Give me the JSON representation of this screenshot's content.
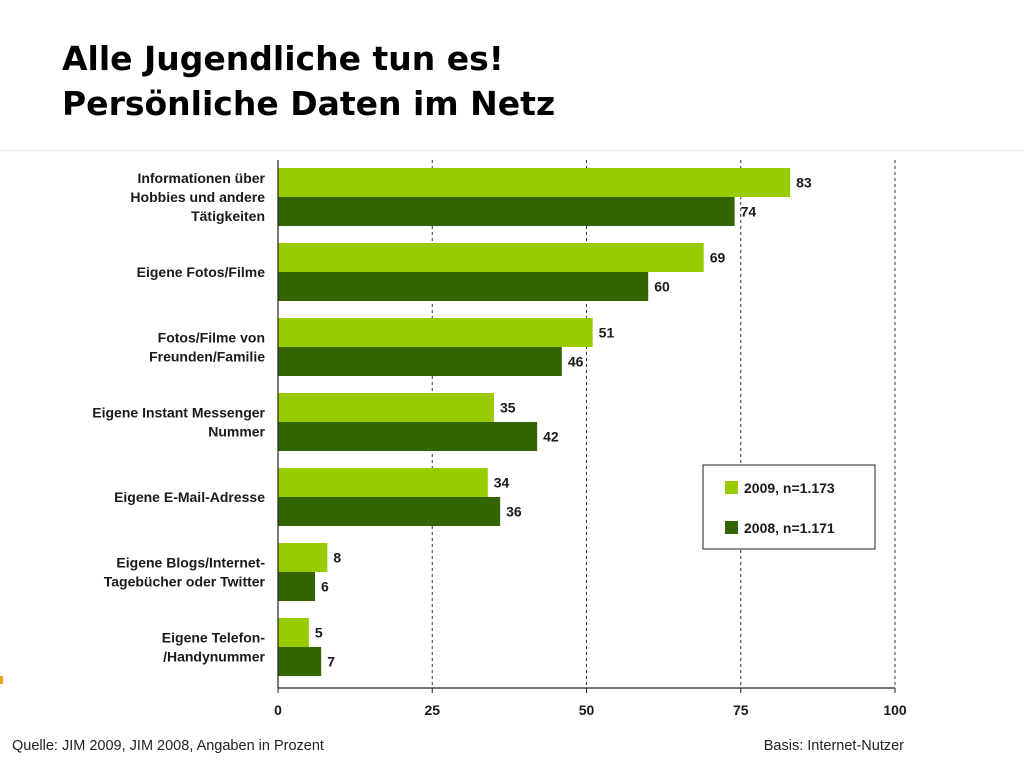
{
  "slide": {
    "title_line1": "Alle Jugendliche tun es!",
    "title_line2": "Persönliche Daten im Netz",
    "source": "Quelle: JIM 2009, JIM 2008, Angaben in Prozent",
    "basis": "Basis: Internet-Nutzer"
  },
  "chart_data": {
    "type": "bar",
    "orientation": "horizontal",
    "categories": [
      [
        "Informationen über",
        "Hobbies und andere",
        "Tätigkeiten"
      ],
      [
        "Eigene Fotos/Filme"
      ],
      [
        "Fotos/Filme von",
        "Freunden/Familie"
      ],
      [
        "Eigene Instant Messenger",
        "Nummer"
      ],
      [
        "Eigene E-Mail-Adresse"
      ],
      [
        "Eigene Blogs/Internet-",
        "Tagebücher oder Twitter"
      ],
      [
        "Eigene Telefon-",
        "/Handynummer"
      ]
    ],
    "series": [
      {
        "name": "2009, n=1.173",
        "color": "#99cc00",
        "values": [
          83,
          69,
          51,
          35,
          34,
          8,
          5
        ]
      },
      {
        "name": "2008, n=1.171",
        "color": "#336600",
        "values": [
          74,
          60,
          46,
          42,
          36,
          6,
          7
        ]
      }
    ],
    "xlim": [
      0,
      100
    ],
    "xticks": [
      0,
      25,
      50,
      75,
      100
    ],
    "grid": "dashed vertical at each tick",
    "legend_position": "lower-right",
    "data_labels": true
  }
}
